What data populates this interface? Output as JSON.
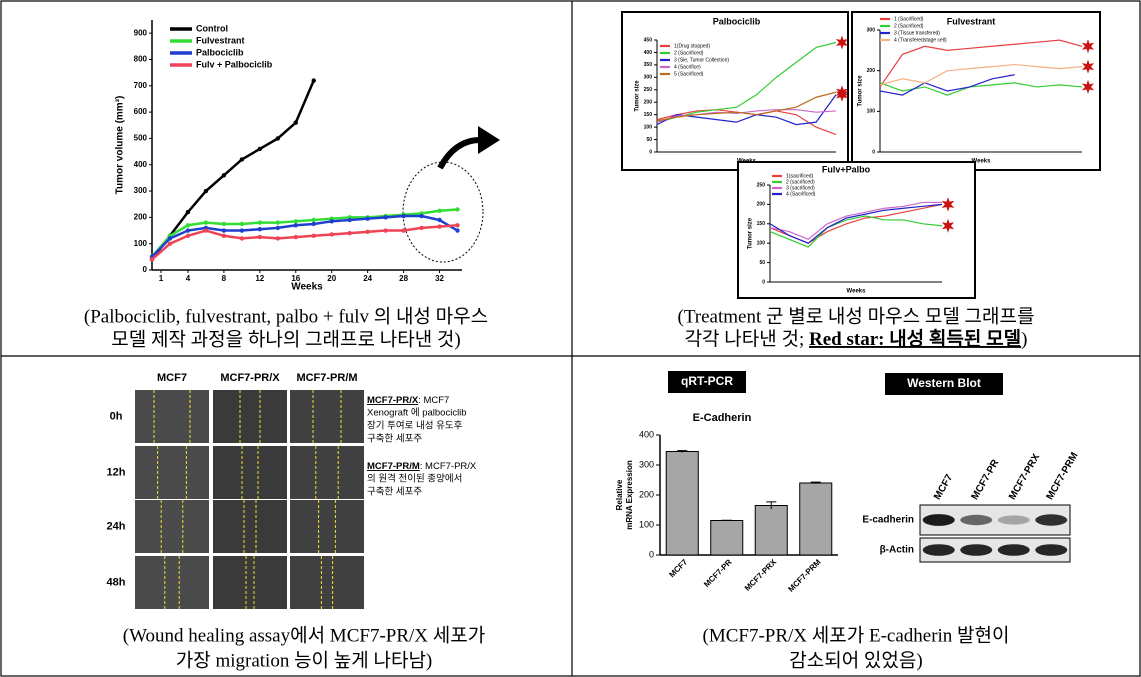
{
  "panels": [
    {
      "caption": [
        "(Palbociclib, fulvestrant, palbo + fulv 의 내성 마우스",
        "모델 제작 과정을 하나의 그래프로 나타낸 것)"
      ],
      "chart_data": {
        "type": "line",
        "x_label": "Weeks",
        "y_label": "Tumor volume (mm³)",
        "x": [
          0,
          2,
          4,
          6,
          8,
          10,
          12,
          14,
          16,
          18,
          20,
          22,
          24,
          26,
          28,
          30,
          32,
          34
        ],
        "xlim": [
          0,
          34.5
        ],
        "xticks": [
          1,
          4,
          8,
          12,
          16,
          20,
          24,
          28,
          32
        ],
        "ylim": [
          0,
          950
        ],
        "yticks": [
          0,
          100,
          200,
          300,
          400,
          500,
          600,
          700,
          800,
          900
        ],
        "series": [
          {
            "name": "Control",
            "color": "#000000",
            "values": [
              40,
              130,
              220,
              300,
              360,
              420,
              460,
              500,
              560,
              720,
              null,
              null,
              null,
              null,
              null,
              null,
              null,
              null
            ]
          },
          {
            "name": "Fulvestrant",
            "color": "#33dd33",
            "values": [
              50,
              130,
              170,
              180,
              175,
              175,
              180,
              180,
              185,
              190,
              195,
              200,
              200,
              205,
              210,
              215,
              225,
              230
            ]
          },
          {
            "name": "Palbociclib",
            "color": "#1f3fd0",
            "values": [
              50,
              120,
              150,
              160,
              150,
              150,
              155,
              160,
              170,
              175,
              185,
              190,
              195,
              200,
              205,
              205,
              190,
              150
            ]
          },
          {
            "name": "Fulv + Palbociclib",
            "color": "#ee4455",
            "values": [
              40,
              100,
              130,
              150,
              130,
              120,
              125,
              120,
              125,
              130,
              135,
              140,
              145,
              150,
              150,
              160,
              165,
              170
            ]
          }
        ]
      }
    },
    {
      "caption": [
        "(Treatment 군 별로 내성 마우스 모델 그래프를"
      ],
      "caption_line2": [
        "각각 나타낸 것; ",
        "Red star: 내성 획득된 모델",
        ")"
      ],
      "charts": [
        {
          "chart_data": {
            "type": "line",
            "title": "Palbociclib",
            "x_label": "Weeks",
            "y_label": "Tumor size",
            "x": [
              0,
              3,
              6,
              9,
              12,
              15,
              18,
              21,
              24,
              27
            ],
            "xlim": [
              0,
              27
            ],
            "ylim": [
              0,
              450
            ],
            "yticks": [
              0,
              50,
              100,
              150,
              200,
              250,
              300,
              350,
              400,
              450
            ],
            "series": [
              {
                "name": "1(Drug stopped)",
                "color": "#e8403f",
                "values": [
                  130,
                  150,
                  165,
                  170,
                  160,
                  150,
                  165,
                  150,
                  100,
                  70
                ]
              },
              {
                "name": "2 (Sacrificed)",
                "color": "#33cc33",
                "values": [
                  120,
                  140,
                  160,
                  170,
                  180,
                  230,
                  300,
                  360,
                  420,
                  440
                ]
              },
              {
                "name": "3 (Sie, Tumor Collection)",
                "color": "#2222cc",
                "values": [
                  110,
                  150,
                  140,
                  130,
                  120,
                  150,
                  140,
                  110,
                  120,
                  230
                ]
              },
              {
                "name": "4 (Sacrifice)",
                "color": "#cc66cc",
                "values": [
                  120,
                  145,
                  150,
                  160,
                  155,
                  165,
                  170,
                  170,
                  160,
                  165
                ]
              },
              {
                "name": "5 (Sacrificed)",
                "color": "#b86d1c",
                "values": [
                  125,
                  140,
                  150,
                  155,
                  160,
                  150,
                  165,
                  180,
                  220,
                  240
                ]
              }
            ]
          }
        },
        {
          "chart_data": {
            "type": "line",
            "title": "Fulvestrant",
            "x_label": "Weeks",
            "y_label": "Tumor size",
            "x": [
              0,
              3,
              6,
              9,
              12,
              15,
              18,
              21,
              24,
              27
            ],
            "xlim": [
              0,
              27
            ],
            "ylim": [
              0,
              300
            ],
            "yticks": [
              0,
              100,
              200,
              300
            ],
            "series": [
              {
                "name": "1 (Sacrificed)",
                "color": "#e8403f",
                "values": [
                  160,
                  240,
                  260,
                  250,
                  255,
                  260,
                  265,
                  270,
                  275,
                  260
                ]
              },
              {
                "name": "2 (Sacrificed)",
                "color": "#33cc33",
                "values": [
                  170,
                  150,
                  160,
                  140,
                  160,
                  165,
                  170,
                  160,
                  165,
                  160
                ]
              },
              {
                "name": "3 (Tissue transfered)",
                "color": "#2222cc",
                "values": [
                  150,
                  140,
                  170,
                  150,
                  160,
                  180,
                  190,
                  null,
                  null,
                  null
                ]
              },
              {
                "name": "4 (Transferedstage cell)",
                "color": "#f4b183",
                "values": [
                  165,
                  180,
                  170,
                  200,
                  205,
                  210,
                  215,
                  210,
                  205,
                  210
                ]
              }
            ]
          }
        },
        {
          "chart_data": {
            "type": "line",
            "title": "Fulv+Palbo",
            "x_label": "Weeks",
            "y_label": "Tumor size",
            "x": [
              0,
              3,
              6,
              9,
              12,
              15,
              18,
              21,
              24,
              27
            ],
            "xlim": [
              0,
              27
            ],
            "ylim": [
              0,
              250
            ],
            "yticks": [
              0,
              50,
              100,
              150,
              200,
              250
            ],
            "series": [
              {
                "name": "1(sacrificed)",
                "color": "#e8403f",
                "values": [
                  140,
                  120,
                  100,
                  130,
                  150,
                  165,
                  170,
                  180,
                  190,
                  200
                ]
              },
              {
                "name": "2 (sacrificed)",
                "color": "#33cc33",
                "values": [
                  130,
                  110,
                  90,
                  140,
                  160,
                  170,
                  160,
                  160,
                  150,
                  145
                ]
              },
              {
                "name": "3 (sacrificed)",
                "color": "#cc66cc",
                "values": [
                  140,
                  130,
                  110,
                  150,
                  170,
                  180,
                  190,
                  195,
                  205,
                  205
                ]
              },
              {
                "name": "4 (Sacrificed)",
                "color": "#2222cc",
                "values": [
                  150,
                  120,
                  100,
                  140,
                  165,
                  175,
                  185,
                  190,
                  195,
                  200
                ]
              }
            ]
          }
        }
      ]
    },
    {
      "caption": [
        "(Wound healing assay에서 MCF7-PR/X 세포가",
        "가장 migration 능이 높게 나타남)"
      ],
      "wound": {
        "columns": [
          "MCF7",
          "MCF7-PR/X",
          "MCF7-PR/M"
        ],
        "rows": [
          "0h",
          "12h",
          "24h",
          "48h"
        ],
        "notes": [
          {
            "term": "MCF7-PR/X",
            "lines": [
              ": MCF7",
              "Xenograft 에 palbociclib",
              "장기 투여로 내성 유도후",
              "구축한 세포주"
            ]
          },
          {
            "term": "MCF7-PR/M",
            "lines": [
              ": MCF7-PR/X",
              "의 원격 전이된 종양에서",
              "구축한 세포주"
            ]
          }
        ]
      }
    },
    {
      "caption": [
        "(MCF7-PR/X 세포가 E-cadherin 발현이",
        "감소되어 있었음)"
      ],
      "qpcr_label": "qRT-PCR",
      "chart_data": {
        "type": "bar",
        "title": "E-Cadherin",
        "y_label": [
          "Relative",
          "mRNA Expression"
        ],
        "categories": [
          "MCF7",
          "MCF7-PR",
          "MCF7-PRX",
          "MCF7-PRM"
        ],
        "values": [
          345,
          115,
          165,
          240
        ],
        "errors": [
          3,
          1,
          12,
          3
        ],
        "color": "#a6a6a6",
        "ylim": [
          0,
          400
        ],
        "yticks": [
          0,
          100,
          200,
          300,
          400
        ]
      },
      "western": {
        "label": "Western Blot",
        "columns": [
          "MCF7",
          "MCF7-PR",
          "MCF7-PRX",
          "MCF7-PRM"
        ],
        "rows": [
          "E-cadherin",
          "β-Actin"
        ]
      }
    }
  ]
}
